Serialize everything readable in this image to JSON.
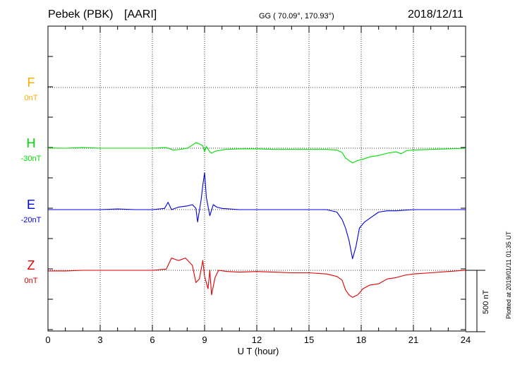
{
  "header": {
    "station": "Pebek (PBK)",
    "network": "[AARI]",
    "coords": "GG ( 70.09°, 170.93°)",
    "date": "2018/12/11"
  },
  "chart_data": {
    "type": "line",
    "title": "",
    "xlabel": "U T (hour)",
    "xlim": [
      0,
      24
    ],
    "xticks": [
      "0",
      "3",
      "6",
      "9",
      "12",
      "15",
      "18",
      "21",
      "24"
    ],
    "grid": true,
    "scale_bar": "500 nT",
    "series": [
      {
        "name": "F",
        "offset": "0nT",
        "color": "#ffaa00",
        "x": [],
        "y": []
      },
      {
        "name": "H",
        "offset": "-30nT",
        "color": "#00e000",
        "x": [
          0,
          1,
          2,
          3,
          4,
          5,
          6,
          6.8,
          7.2,
          7.6,
          8.0,
          8.3,
          8.5,
          8.7,
          8.9,
          9.0,
          9.1,
          9.3,
          9.4,
          9.6,
          9.8,
          10.2,
          11,
          12,
          13,
          14,
          15,
          16,
          16.6,
          16.9,
          17.1,
          17.3,
          17.5,
          17.8,
          18.1,
          18.5,
          19,
          19.5,
          20,
          20.3,
          20.6,
          21,
          22,
          23,
          24
        ],
        "y": [
          2,
          0,
          5,
          0,
          0,
          0,
          0,
          5,
          -15,
          -10,
          0,
          25,
          45,
          35,
          20,
          -30,
          15,
          -30,
          -40,
          -25,
          -20,
          -10,
          -5,
          -5,
          -10,
          -10,
          -10,
          -10,
          -15,
          -35,
          -80,
          -100,
          -120,
          -100,
          -90,
          -70,
          -60,
          -40,
          -30,
          -45,
          -20,
          -15,
          -10,
          -5,
          0
        ]
      },
      {
        "name": "E",
        "offset": "-20nT",
        "color": "#0000e0",
        "x": [
          0,
          1,
          2,
          3,
          4,
          5,
          6,
          6.7,
          6.9,
          7.1,
          7.5,
          8.0,
          8.3,
          8.5,
          8.6,
          8.8,
          8.9,
          9.0,
          9.1,
          9.3,
          9.5,
          9.7,
          10,
          11,
          12,
          13,
          14,
          15,
          16,
          16.6,
          16.9,
          17.1,
          17.3,
          17.5,
          17.7,
          17.9,
          18.2,
          18.6,
          19,
          19.5,
          20,
          21,
          22,
          23,
          24
        ],
        "y": [
          0,
          0,
          0,
          0,
          5,
          0,
          0,
          10,
          60,
          0,
          20,
          30,
          40,
          10,
          -100,
          80,
          200,
          300,
          100,
          -50,
          40,
          20,
          10,
          0,
          0,
          0,
          0,
          0,
          0,
          -20,
          -80,
          -150,
          -250,
          -400,
          -300,
          -150,
          -100,
          -60,
          -20,
          -10,
          -10,
          0,
          0,
          0,
          0
        ]
      },
      {
        "name": "Z",
        "offset": "0nT",
        "color": "#e00000",
        "x": [
          0,
          1,
          2,
          3,
          4,
          5,
          6,
          6.8,
          7.1,
          7.5,
          7.9,
          8.3,
          8.5,
          8.7,
          8.9,
          9.0,
          9.2,
          9.3,
          9.4,
          9.6,
          9.8,
          10.3,
          11,
          12,
          13,
          14,
          15,
          16,
          16.6,
          16.9,
          17.1,
          17.3,
          17.5,
          17.8,
          18.1,
          18.5,
          19,
          19.5,
          20,
          20.5,
          21,
          22,
          23,
          24
        ],
        "y": [
          -5,
          -5,
          0,
          0,
          0,
          0,
          0,
          10,
          100,
          80,
          100,
          40,
          -100,
          -70,
          80,
          -50,
          -150,
          0,
          -200,
          -60,
          0,
          -10,
          -15,
          -10,
          -15,
          -20,
          -20,
          -30,
          -50,
          -80,
          -160,
          -200,
          -220,
          -200,
          -150,
          -120,
          -110,
          -70,
          -60,
          -40,
          -30,
          -20,
          -10,
          0
        ]
      }
    ]
  },
  "footer": {
    "plotted": "Plotted at 2019/01/11 01:35 UT"
  }
}
